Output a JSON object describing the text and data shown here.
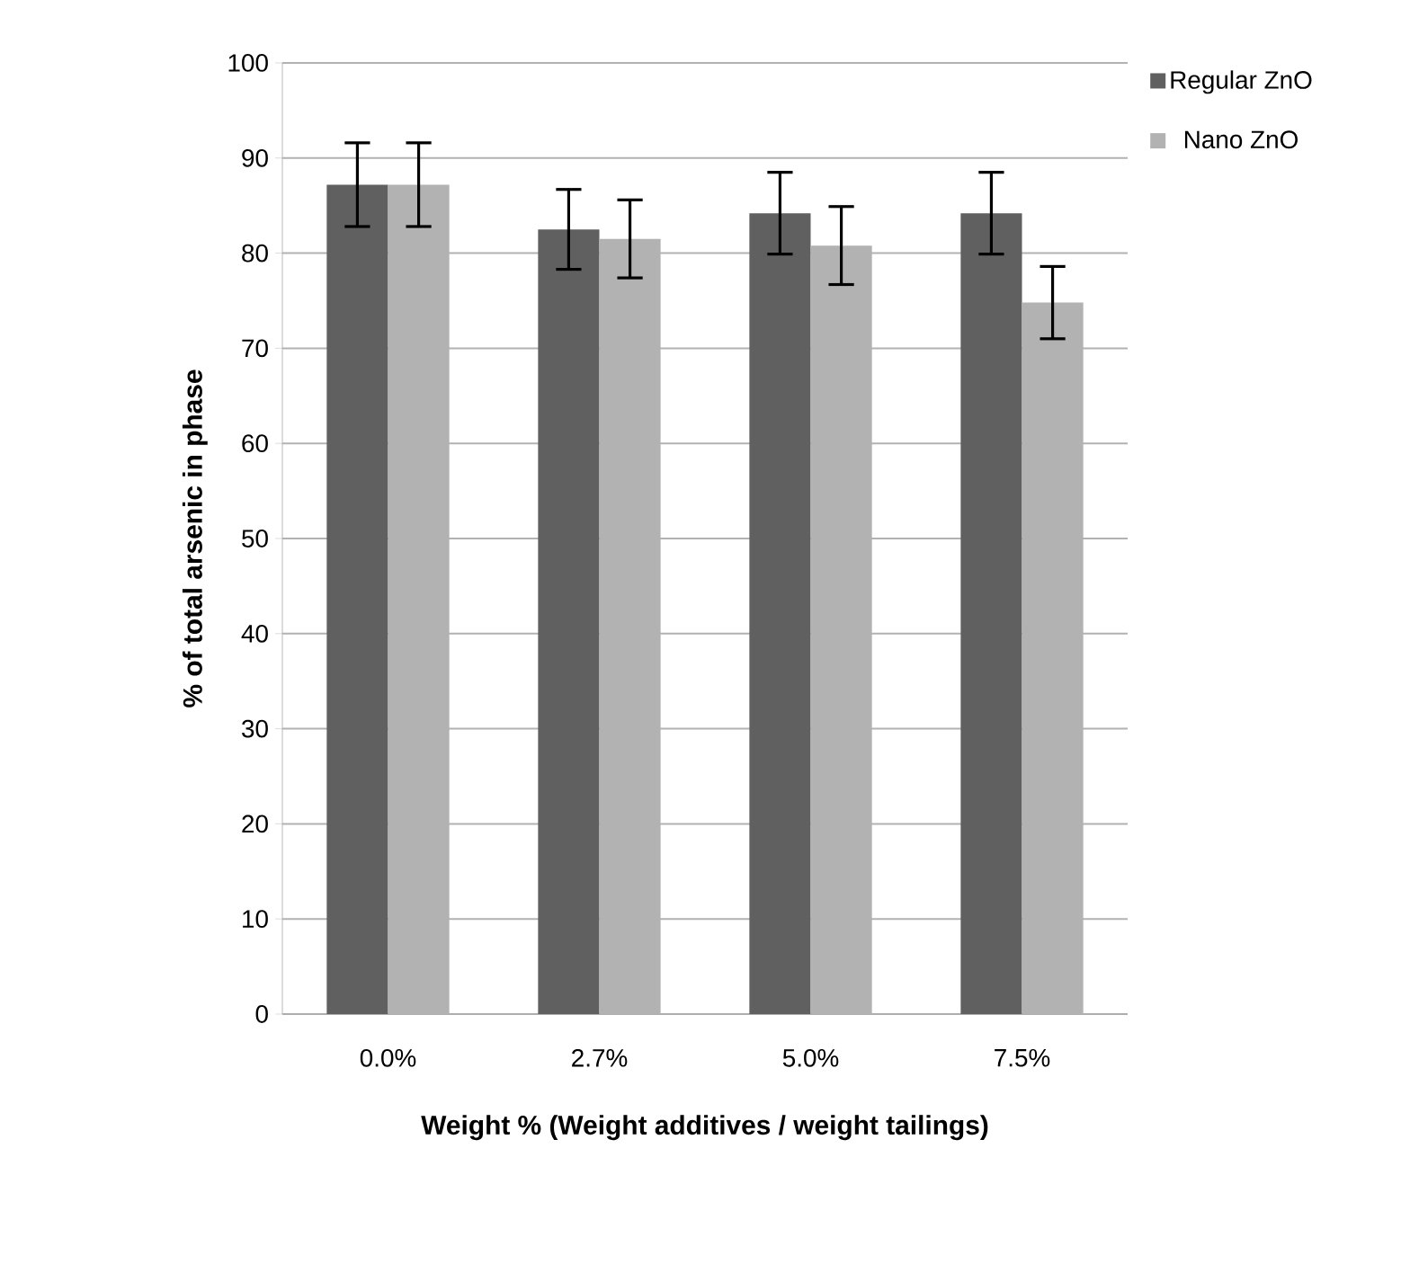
{
  "chart_data": {
    "type": "bar",
    "xlabel": "Weight % (Weight additives / weight tailings)",
    "ylabel": "% of total arsenic in phase",
    "categories": [
      "0.0%",
      "2.7%",
      "5.0%",
      "7.5%"
    ],
    "series": [
      {
        "name": "Regular ZnO",
        "color": "#606060",
        "values": [
          87.2,
          82.5,
          84.2,
          84.2
        ],
        "errors": [
          4.4,
          4.2,
          4.3,
          4.3
        ]
      },
      {
        "name": "Nano ZnO",
        "color": "#b2b2b2",
        "values": [
          87.2,
          81.5,
          80.8,
          74.8
        ],
        "errors": [
          4.4,
          4.1,
          4.1,
          3.8
        ]
      }
    ],
    "ylim": [
      0,
      100
    ],
    "yticks": [
      0,
      10,
      20,
      30,
      40,
      50,
      60,
      70,
      80,
      90,
      100
    ],
    "grid": "y",
    "legend": "top right"
  }
}
